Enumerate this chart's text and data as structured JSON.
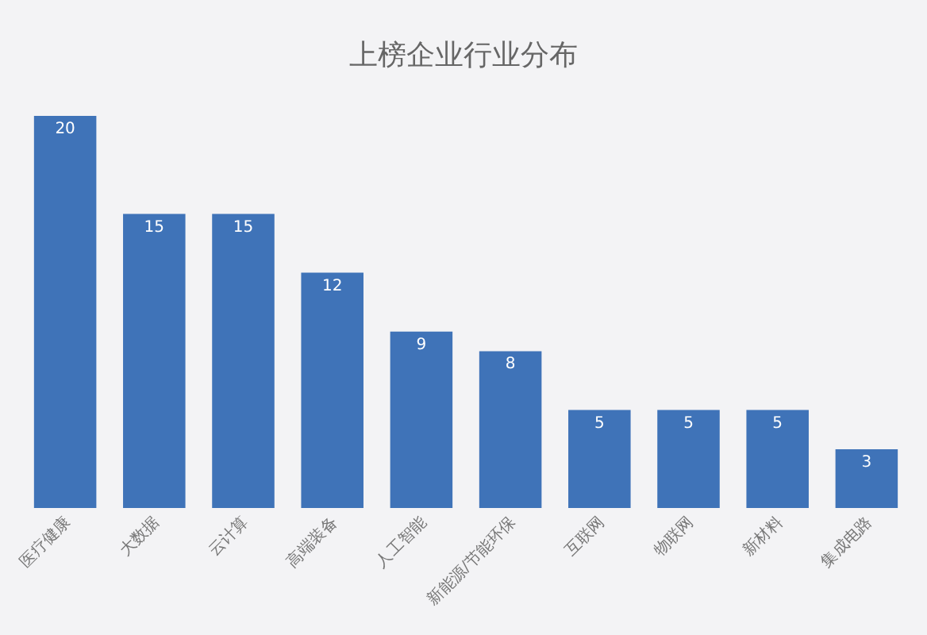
{
  "chart_data": {
    "type": "bar",
    "title": "上榜企业行业分布",
    "categories": [
      "医疗健康",
      "大数据",
      "云计算",
      "高端装备",
      "人工智能",
      "新能源/节能环保",
      "互联网",
      "物联网",
      "新材料",
      "集成电路"
    ],
    "values": [
      20,
      15,
      15,
      12,
      9,
      8,
      5,
      5,
      5,
      3
    ],
    "color": "#3f73b8",
    "data_labels": true,
    "grid": false,
    "legend": false,
    "tick_labels": "x"
  }
}
